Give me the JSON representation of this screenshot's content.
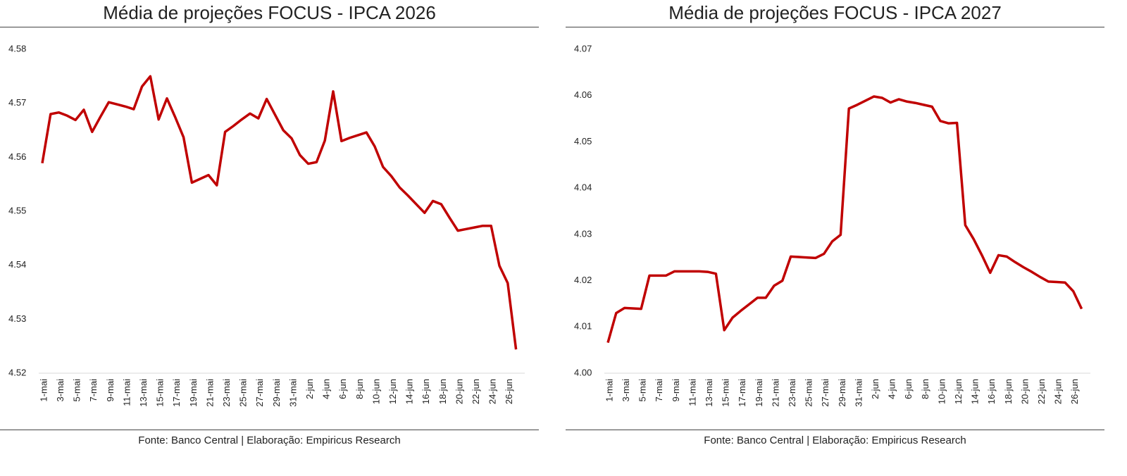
{
  "chart_data": [
    {
      "type": "line",
      "title": "Média de projeções FOCUS - IPCA 2026",
      "source": "Fonte: Banco Central | Elaboração: Empiricus Research",
      "categories": [
        "1-mai",
        null,
        "3-mai",
        null,
        "5-mai",
        null,
        "7-mai",
        null,
        "9-mai",
        null,
        "11-mai",
        null,
        "13-mai",
        null,
        "15-mai",
        null,
        "17-mai",
        null,
        "19-mai",
        null,
        "21-mai",
        null,
        "23-mai",
        null,
        "25-mai",
        null,
        "27-mai",
        null,
        "29-mai",
        null,
        "31-mai",
        null,
        "2-jun",
        null,
        "4-jun",
        null,
        "6-jun",
        null,
        "8-jun",
        null,
        "10-jun",
        null,
        "12-jun",
        null,
        "14-jun",
        null,
        "16-jun",
        null,
        "18-jun",
        null,
        "20-jun",
        null,
        "22-jun",
        null,
        "24-jun",
        null,
        "26-jun",
        null
      ],
      "series": [
        {
          "name": "IPCA 2026",
          "color": "#c00000",
          "values": [
            4.5589,
            4.568,
            4.5683,
            4.5677,
            4.5669,
            4.5688,
            4.5647,
            4.5675,
            4.5702,
            4.5698,
            4.5694,
            4.5689,
            4.5731,
            4.575,
            4.567,
            4.5709,
            4.5674,
            4.5637,
            4.5553,
            4.556,
            4.5567,
            4.5548,
            4.5647,
            4.5658,
            4.567,
            4.5681,
            4.5672,
            4.5708,
            4.5679,
            4.565,
            4.5635,
            4.5604,
            4.5588,
            4.5591,
            4.5631,
            4.5722,
            4.563,
            4.5636,
            4.5641,
            4.5646,
            4.562,
            4.5582,
            4.5565,
            4.5544,
            4.5529,
            4.5513,
            4.5497,
            4.5519,
            4.5513,
            4.5488,
            4.5464,
            4.5467,
            4.547,
            4.5473,
            4.5473,
            4.5399,
            4.5367,
            4.5244
          ]
        }
      ],
      "ylim": [
        4.52,
        4.58
      ],
      "yticks": [
        4.52,
        4.53,
        4.54,
        4.55,
        4.56,
        4.57,
        4.58
      ],
      "grid": false
    },
    {
      "type": "line",
      "title": "Média de projeções FOCUS - IPCA 2027",
      "source": "Fonte: Banco Central | Elaboração: Empiricus Research",
      "categories": [
        "1-mai",
        null,
        "3-mai",
        null,
        "5-mai",
        null,
        "7-mai",
        null,
        "9-mai",
        null,
        "11-mai",
        null,
        "13-mai",
        null,
        "15-mai",
        null,
        "17-mai",
        null,
        "19-mai",
        null,
        "21-mai",
        null,
        "23-mai",
        null,
        "25-mai",
        null,
        "27-mai",
        null,
        "29-mai",
        null,
        "31-mai",
        null,
        "2-jun",
        null,
        "4-jun",
        null,
        "6-jun",
        null,
        "8-jun",
        null,
        "10-jun",
        null,
        "12-jun",
        null,
        "14-jun",
        null,
        "16-jun",
        null,
        "18-jun",
        null,
        "20-jun",
        null,
        "22-jun",
        null,
        "24-jun",
        null,
        "26-jun",
        null
      ],
      "series": [
        {
          "name": "IPCA 2027",
          "color": "#c00000",
          "values": [
            4.0066,
            4.013,
            4.0141,
            4.014,
            4.0139,
            4.0211,
            4.0211,
            4.0211,
            4.022,
            4.022,
            4.022,
            4.022,
            4.0219,
            4.0215,
            4.0093,
            4.012,
            4.0135,
            4.0149,
            4.0163,
            4.0163,
            4.0189,
            4.02,
            4.0252,
            4.0251,
            4.025,
            4.0249,
            4.0258,
            4.0285,
            4.0299,
            4.0572,
            4.058,
            4.0589,
            4.0598,
            4.0595,
            4.0585,
            4.0592,
            4.0587,
            4.0584,
            4.058,
            4.0576,
            4.0545,
            4.054,
            4.0541,
            4.032,
            4.029,
            4.0255,
            4.0217,
            4.0255,
            4.0252,
            4.024,
            4.0229,
            4.0219,
            4.0208,
            4.0198,
            4.0197,
            4.0196,
            4.0177,
            4.0139
          ]
        }
      ],
      "ylim": [
        4.0,
        4.07
      ],
      "yticks": [
        {
          "value": 4.0,
          "label": "4.00"
        },
        4.01,
        4.02,
        4.03,
        4.04,
        4.05,
        4.06,
        4.07
      ],
      "grid": false
    }
  ]
}
